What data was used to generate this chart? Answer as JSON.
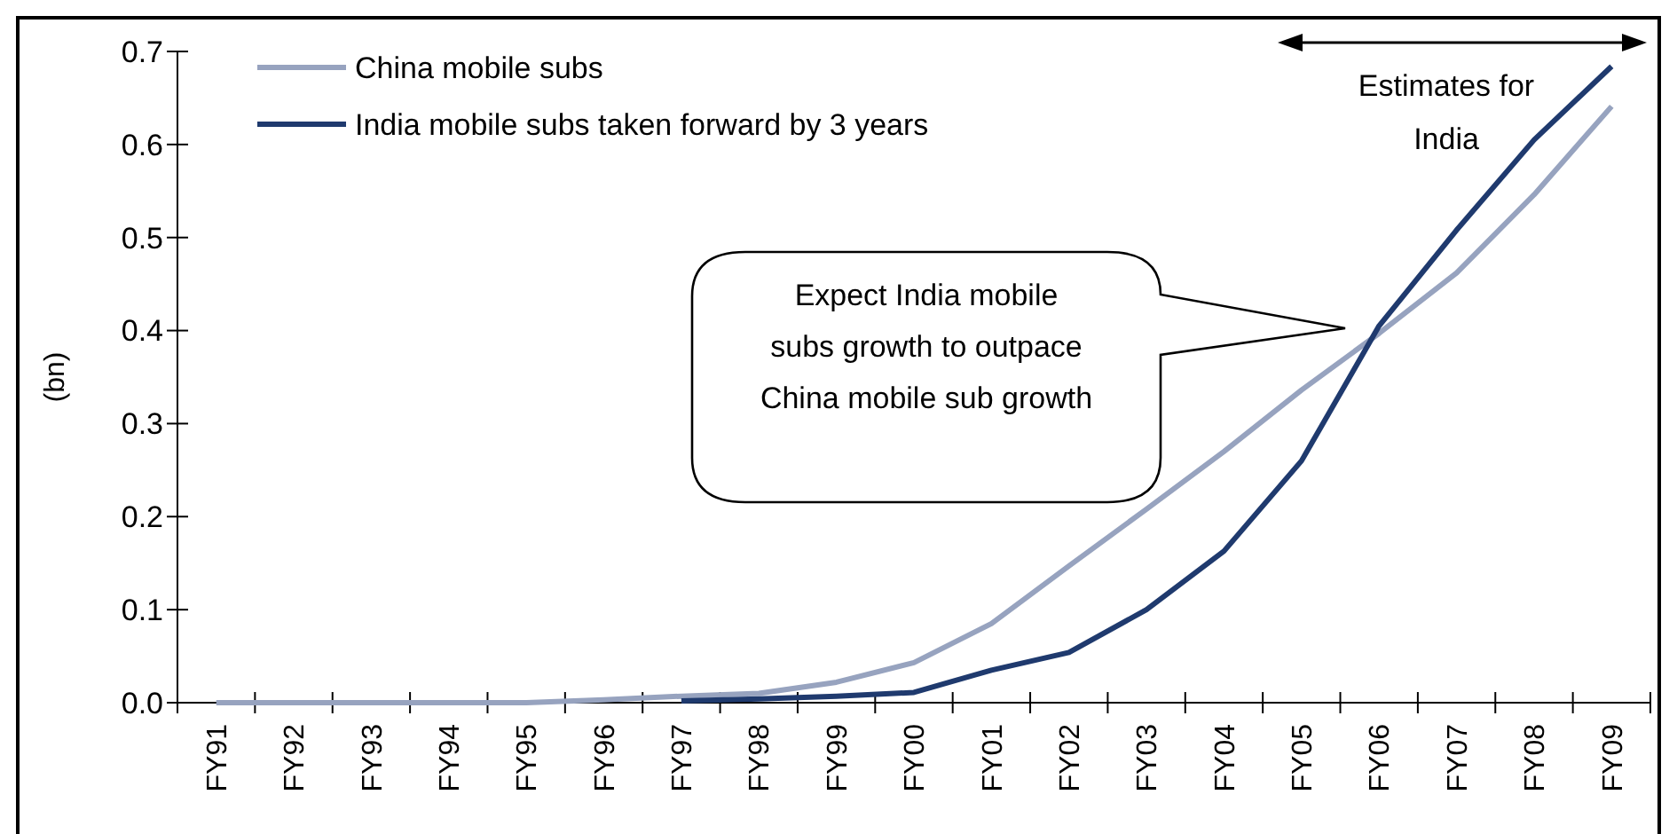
{
  "chart_data": {
    "type": "line",
    "ylabel": "(bn)",
    "categories": [
      "FY91",
      "FY92",
      "FY93",
      "FY94",
      "FY95",
      "FY96",
      "FY97",
      "FY98",
      "FY99",
      "FY00",
      "FY01",
      "FY02",
      "FY03",
      "FY04",
      "FY05",
      "FY06",
      "FY07",
      "FY08",
      "FY09"
    ],
    "series": [
      {
        "name": "China mobile subs",
        "color": "#97a3bf",
        "values": [
          0,
          0,
          0,
          0,
          0,
          0.003,
          0.007,
          0.01,
          0.022,
          0.043,
          0.085,
          0.147,
          0.208,
          0.27,
          0.336,
          0.397,
          0.462,
          0.546,
          0.641
        ]
      },
      {
        "name": "India mobile subs taken forward by 3 years",
        "color": "#1f3a6e",
        "values": [
          null,
          null,
          null,
          null,
          null,
          null,
          0.002,
          0.004,
          0.007,
          0.011,
          0.035,
          0.054,
          0.1,
          0.163,
          0.26,
          0.405,
          0.508,
          0.605,
          0.684
        ]
      }
    ],
    "ylim": [
      0,
      0.7
    ],
    "yticks": [
      {
        "value": 0,
        "label": "0.0"
      },
      {
        "value": 0.1,
        "label": "0.1"
      },
      {
        "value": 0.2,
        "label": "0.2"
      },
      {
        "value": 0.3,
        "label": "0.3"
      },
      {
        "value": 0.4,
        "label": "0.4"
      },
      {
        "value": 0.5,
        "label": "0.5"
      },
      {
        "value": 0.6,
        "label": "0.6"
      },
      {
        "value": 0.7,
        "label": "0.7"
      }
    ],
    "annotations": [
      "Expect India mobile subs growth to outpace China mobile sub growth",
      "Estimates for India"
    ],
    "legend": "top left",
    "grid": false,
    "marker": "none",
    "line_style": "solid"
  }
}
